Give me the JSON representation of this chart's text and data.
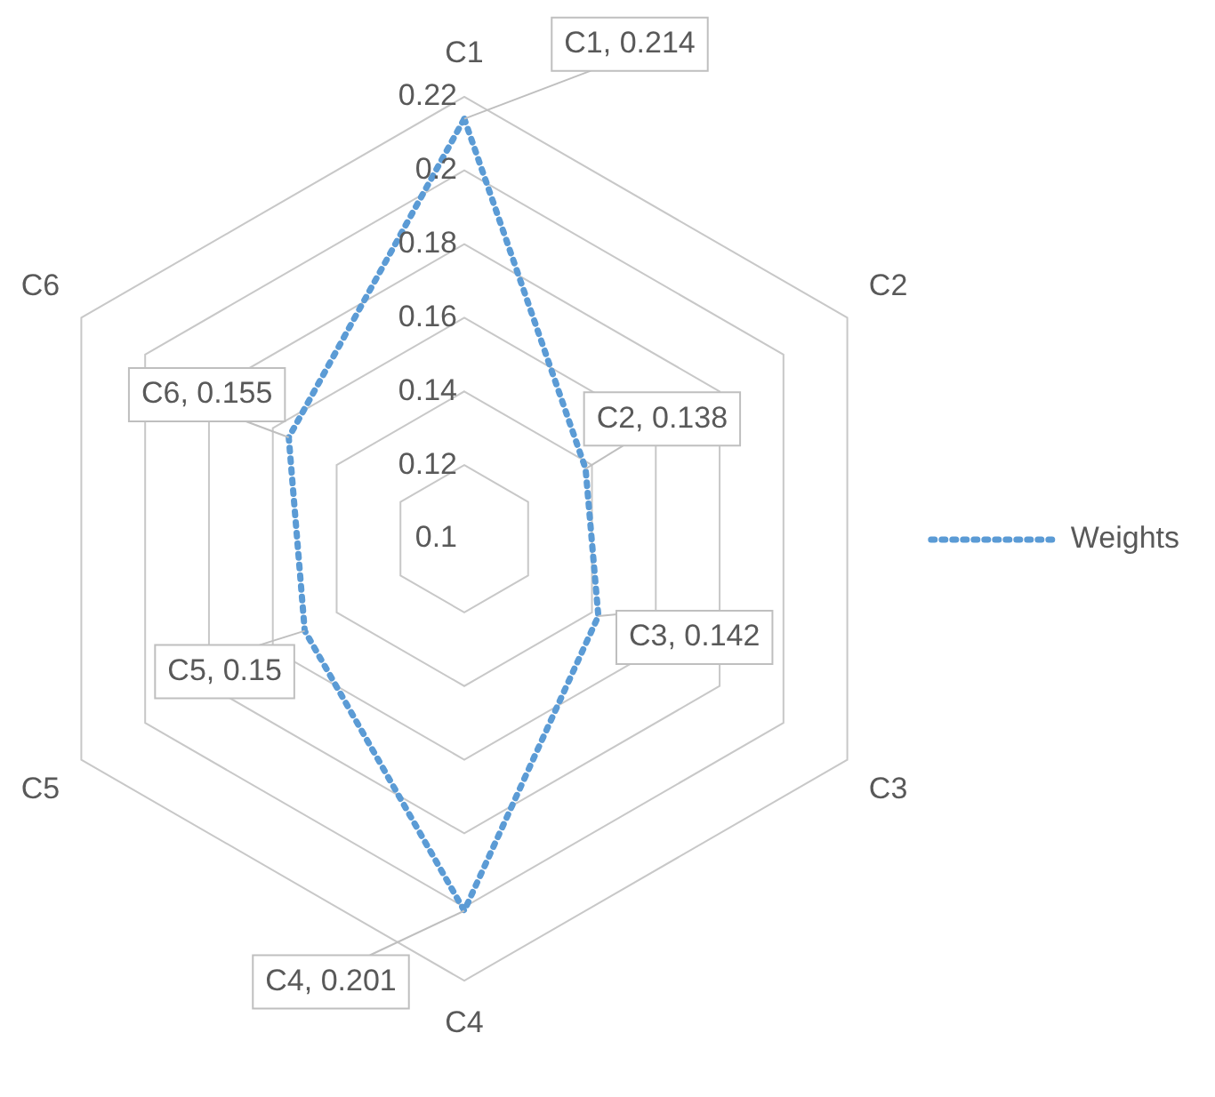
{
  "chart_data": {
    "type": "radar",
    "categories": [
      "C1",
      "C2",
      "C3",
      "C4",
      "C5",
      "C6"
    ],
    "series": [
      {
        "name": "Weights",
        "color": "#5b9bd5",
        "values": [
          0.214,
          0.138,
          0.142,
          0.201,
          0.15,
          0.155
        ],
        "value_labels": [
          "C1, 0.214",
          "C2, 0.138",
          "C3, 0.142",
          "C4, 0.201",
          "C5, 0.15",
          "C6, 0.155"
        ]
      }
    ],
    "ylim": [
      0.1,
      0.22
    ],
    "yticks": [
      0.1,
      0.12,
      0.14,
      0.16,
      0.18,
      0.2,
      0.22
    ],
    "grid": true,
    "legend": "right",
    "marker": "none",
    "line_style": "dotted"
  }
}
